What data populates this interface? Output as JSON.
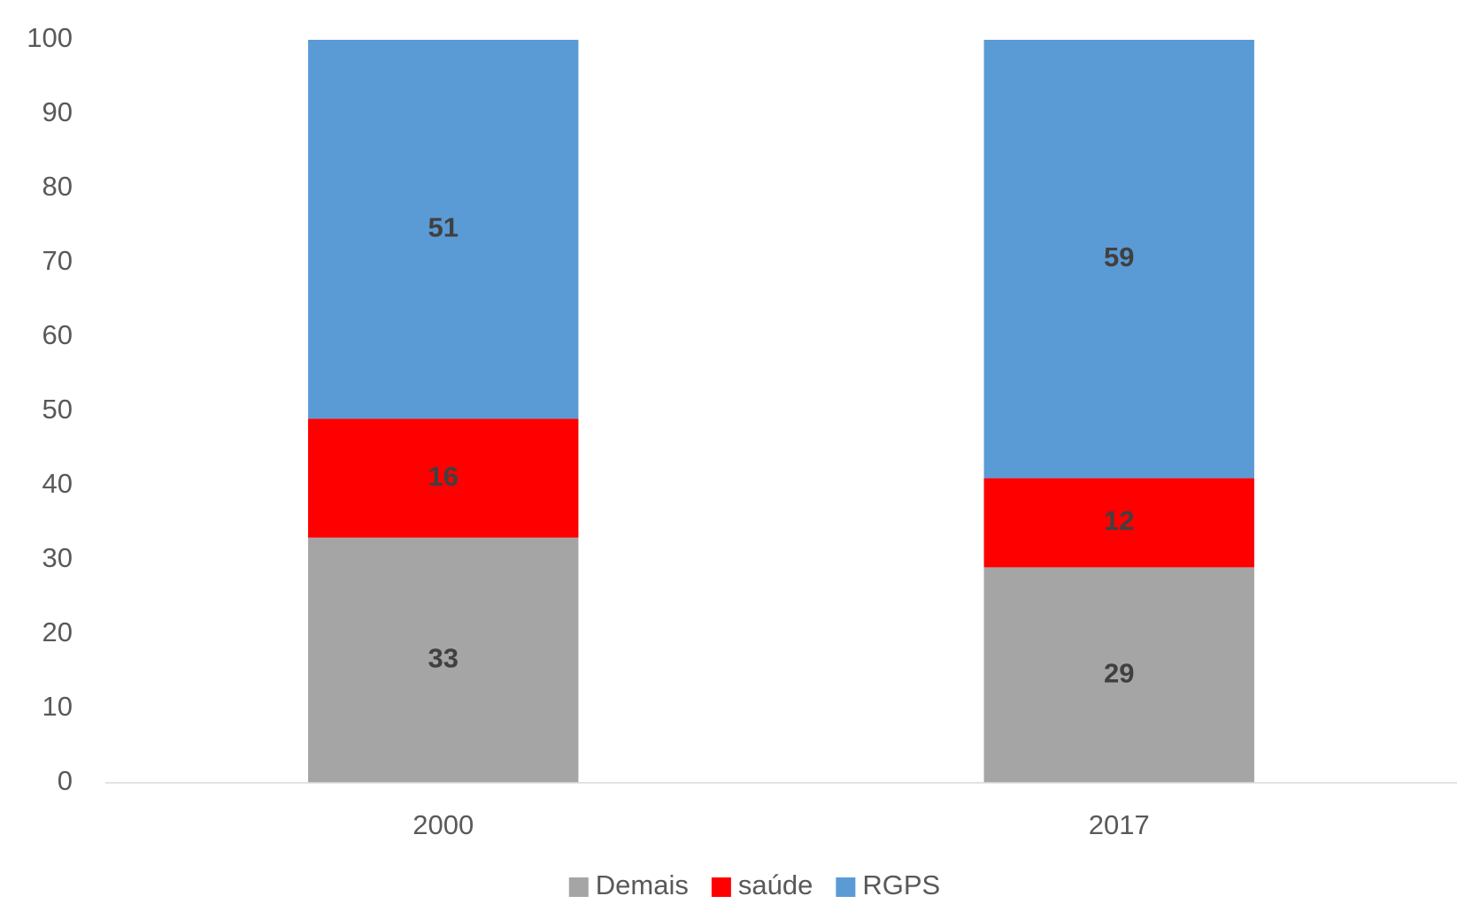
{
  "chart_data": {
    "type": "stacked_bar",
    "categories": [
      "2000",
      "2017"
    ],
    "series": [
      {
        "name": "Demais",
        "color": "#a5a5a5",
        "values": [
          33,
          29
        ]
      },
      {
        "name": "saúde",
        "color": "#ff0000",
        "values": [
          16,
          12
        ]
      },
      {
        "name": "RGPS",
        "color": "#5b9bd5",
        "values": [
          51,
          59
        ]
      }
    ],
    "ylim": [
      0,
      100
    ],
    "yticks": [
      0,
      10,
      20,
      30,
      40,
      50,
      60,
      70,
      80,
      90,
      100
    ],
    "grid": false,
    "legend": "bottom"
  }
}
